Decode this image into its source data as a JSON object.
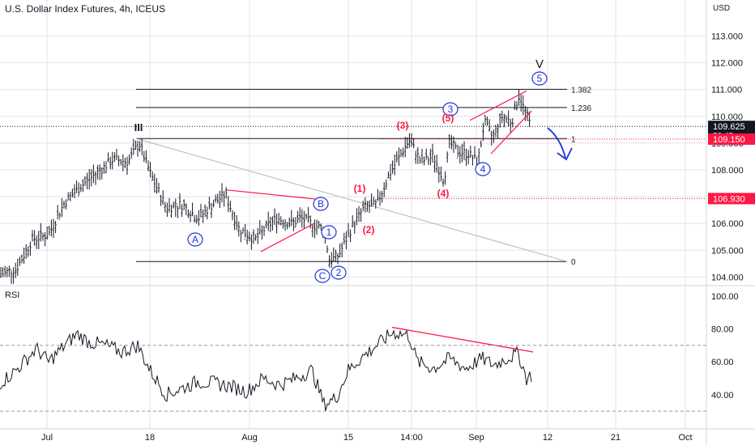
{
  "header": {
    "title": "U.S. Dollar Index Futures, 4h, ICEUS"
  },
  "price_axis": {
    "currency": "USD",
    "ticks": [
      "113.000",
      "112.000",
      "111.000",
      "110.000",
      "109.000",
      "108.000",
      "107.000",
      "106.000",
      "105.000",
      "104.000"
    ]
  },
  "rsi_axis": {
    "label": "RSI",
    "ticks": [
      "100.00",
      "80.00",
      "60.00",
      "40.00"
    ]
  },
  "time_axis": {
    "ticks": [
      "Jul",
      "18",
      "Aug",
      "15",
      "14:00",
      "Sep",
      "12",
      "21",
      "Oct"
    ]
  },
  "price_tags": {
    "last": {
      "value": "109.625",
      "countdown": "50:45",
      "color": "#131722"
    },
    "level_1": {
      "value": "109.150",
      "color": "#ff1744"
    },
    "level_2": {
      "value": "106.930",
      "color": "#ff1744"
    }
  },
  "fib_labels": [
    "1.382",
    "1.236",
    "1",
    "0"
  ],
  "wave_labels": {
    "blue_circled": [
      "A",
      "B",
      "C",
      "1",
      "2",
      "3",
      "4",
      "5"
    ],
    "red_paren": [
      "(1)",
      "(2)",
      "(3)",
      "(4)",
      "(5)"
    ],
    "black": [
      "III",
      "V"
    ]
  },
  "colors": {
    "red": "#ff1744",
    "blue": "#1f35d6",
    "bars": "#131722",
    "grid": "#e0e3eb"
  },
  "chart_data": [
    {
      "type": "ohlc",
      "title": "U.S. Dollar Index Futures, 4h, ICEUS",
      "ylabel": "USD",
      "ylim": [
        103.7,
        113.9
      ],
      "x_ticks": [
        "Jul",
        "18",
        "Aug",
        "15",
        "14:00",
        "Sep",
        "12",
        "21",
        "Oct"
      ],
      "key_points": [
        {
          "label": "start",
          "value": 104.0
        },
        {
          "label": "III high",
          "value": 109.2
        },
        {
          "label": "B",
          "value": 107.1
        },
        {
          "label": "C",
          "value": 104.6
        },
        {
          "label": "(3)",
          "value": 109.1
        },
        {
          "label": "(4)",
          "value": 107.6
        },
        {
          "label": "(5) / 5 high",
          "value": 110.8
        },
        {
          "label": "last",
          "value": 109.625
        }
      ],
      "levels": [
        {
          "label": "1.382",
          "value": 111.0
        },
        {
          "label": "1.236",
          "value": 110.3
        },
        {
          "label": "1",
          "value": 109.2
        },
        {
          "label": "0",
          "value": 104.6
        }
      ],
      "horizontal_lines": [
        109.625,
        109.15,
        106.93
      ]
    },
    {
      "type": "line",
      "title": "RSI",
      "ylim": [
        20,
        100
      ],
      "y_ticks": [
        100,
        80,
        60,
        40
      ],
      "bands": [
        70,
        30
      ]
    }
  ]
}
